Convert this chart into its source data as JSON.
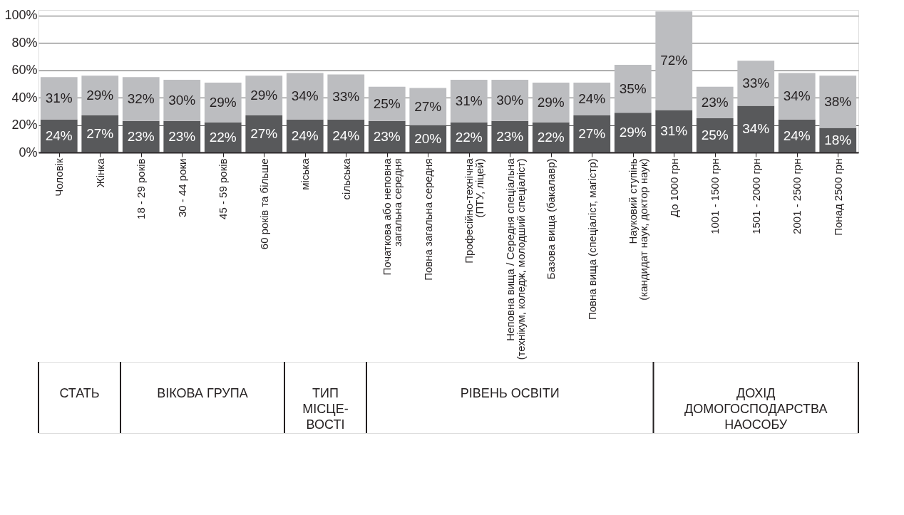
{
  "chart_data": {
    "type": "bar",
    "stacked": true,
    "grid": "y",
    "categories": [
      "Чоловік",
      "Жінка",
      "18 - 29 років",
      "30 - 44 роки",
      "45 - 59 років",
      "60 років та більше",
      "міська",
      "сільська",
      "Початкова або неповна\nзагальна середня",
      "Повна загальна середня",
      "Професійно-технічна\n(ПТУ, ліцей)",
      "Неповна вища / Середня спеціальна\n(технікум, коледж, молодший спеціаліст)",
      "Базова вища (бакалавр)",
      "Повна вища (спеціаліст, магістр)",
      "Науковий ступінь\n(кандидат наук, доктор наук)",
      "До 1000 грн",
      "1001 - 1500 грн",
      "1501 - 2000 грн",
      "2001 - 2500 грн",
      "Понад 2500 грн"
    ],
    "series": [
      {
        "color": "#58595b",
        "values": [
          24,
          27,
          23,
          23,
          22,
          27,
          24,
          24,
          23,
          20,
          22,
          23,
          22,
          27,
          29,
          31,
          25,
          34,
          24,
          18
        ],
        "value_labels": [
          "24%",
          "27%",
          "23%",
          "23%",
          "22%",
          "27%",
          "24%",
          "24%",
          "23%",
          "20%",
          "22%",
          "23%",
          "22%",
          "27%",
          "29%",
          "31%",
          "25%",
          "34%",
          "24%",
          "18%"
        ]
      },
      {
        "color": "#bcbdc0",
        "values": [
          31,
          29,
          32,
          30,
          29,
          29,
          34,
          33,
          25,
          27,
          31,
          30,
          29,
          24,
          35,
          72,
          23,
          33,
          34,
          38
        ],
        "value_labels": [
          "31%",
          "29%",
          "32%",
          "30%",
          "29%",
          "29%",
          "34%",
          "33%",
          "25%",
          "27%",
          "31%",
          "30%",
          "29%",
          "24%",
          "35%",
          "72%",
          "23%",
          "33%",
          "34%",
          "38%"
        ]
      }
    ],
    "ylim": [
      0,
      104
    ],
    "yticks": [
      {
        "value": 0,
        "label": "0%"
      },
      {
        "value": 20,
        "label": "20%"
      },
      {
        "value": 40,
        "label": "40%"
      },
      {
        "value": 60,
        "label": "60%"
      },
      {
        "value": 80,
        "label": "80%"
      },
      {
        "value": 100,
        "label": "100%"
      }
    ],
    "annotations": [
      "СТАТЬ",
      "ВІКОВА ГРУПА",
      "ТИП\nМІСЦЕ-\nВОСТІ",
      "РІВЕНЬ ОСВІТИ",
      "ДОХІД\nДОМОГОСПОДАРСТВА\nНАОСОБУ"
    ]
  }
}
